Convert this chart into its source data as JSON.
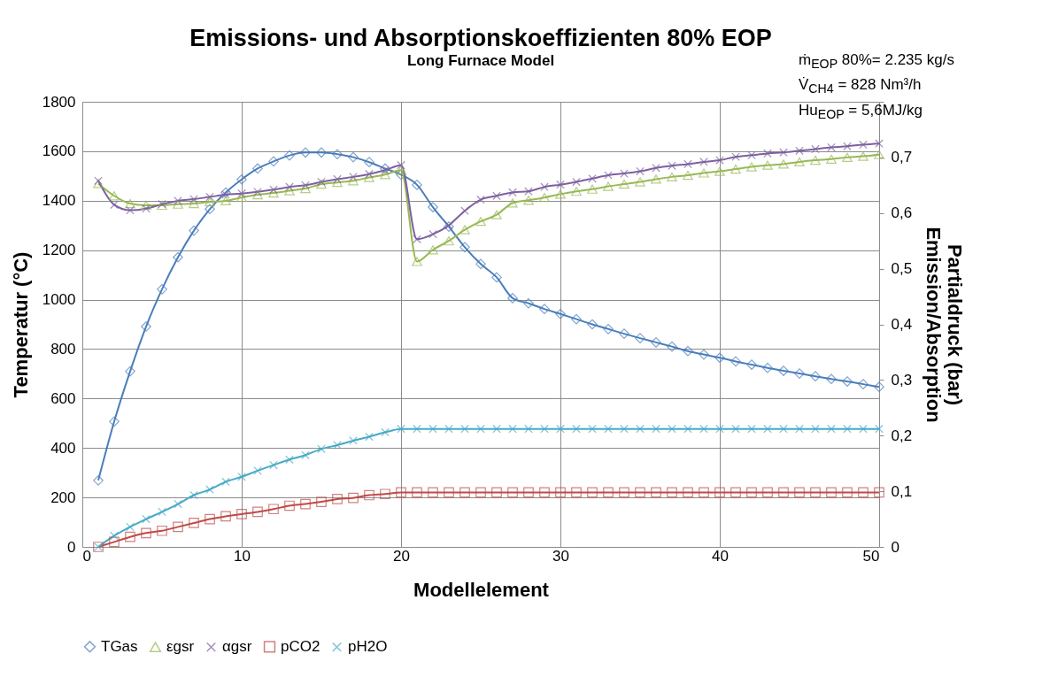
{
  "chart_data": {
    "type": "line",
    "title": "Emissions- und Absorptionskoeffizienten 80% EOP",
    "subtitle": "Long Furnace Model",
    "xlabel": "Modellelement",
    "ylabel": "Temperatur (°C)",
    "y2label": "Partialdruck (bar)\nEmission/Absorption",
    "x": [
      1,
      2,
      3,
      4,
      5,
      6,
      7,
      8,
      9,
      10,
      11,
      12,
      13,
      14,
      15,
      16,
      17,
      18,
      19,
      20,
      21,
      22,
      23,
      24,
      25,
      26,
      27,
      28,
      29,
      30,
      31,
      32,
      33,
      34,
      35,
      36,
      37,
      38,
      39,
      40,
      41,
      42,
      43,
      44,
      45,
      46,
      47,
      48,
      49,
      50
    ],
    "series": [
      {
        "name": "TGas",
        "color": "#4a7ebb",
        "marker": "diamond",
        "values": [
          269,
          507,
          710,
          891,
          1042,
          1171,
          1279,
          1366,
          1433,
          1486,
          1530,
          1559,
          1583,
          1595,
          1595,
          1588,
          1576,
          1556,
          1530,
          1505,
          1464,
          1374,
          1295,
          1212,
          1144,
          1090,
          1006,
          985,
          962,
          942,
          921,
          900,
          881,
          862,
          844,
          827,
          810,
          792,
          778,
          765,
          750,
          737,
          724,
          712,
          701,
          690,
          679,
          669,
          658,
          647
        ]
      },
      {
        "name": "εgsr",
        "color": "#98b954",
        "marker": "triangle",
        "axis": "y2",
        "values": [
          0.653,
          0.631,
          0.617,
          0.614,
          0.614,
          0.616,
          0.617,
          0.62,
          0.622,
          0.628,
          0.633,
          0.636,
          0.64,
          0.644,
          0.652,
          0.655,
          0.658,
          0.664,
          0.669,
          0.677,
          0.513,
          0.534,
          0.55,
          0.57,
          0.585,
          0.597,
          0.618,
          0.623,
          0.628,
          0.634,
          0.639,
          0.643,
          0.648,
          0.652,
          0.656,
          0.661,
          0.665,
          0.668,
          0.672,
          0.675,
          0.679,
          0.683,
          0.686,
          0.688,
          0.692,
          0.695,
          0.697,
          0.7,
          0.702,
          0.705
        ]
      },
      {
        "name": "αgsr",
        "color": "#7d60a0",
        "marker": "cross",
        "axis": "y2",
        "values": [
          0.658,
          0.615,
          0.605,
          0.608,
          0.616,
          0.622,
          0.625,
          0.629,
          0.633,
          0.635,
          0.638,
          0.642,
          0.647,
          0.65,
          0.656,
          0.661,
          0.665,
          0.67,
          0.677,
          0.686,
          0.553,
          0.562,
          0.578,
          0.604,
          0.624,
          0.631,
          0.637,
          0.639,
          0.647,
          0.651,
          0.656,
          0.662,
          0.668,
          0.671,
          0.675,
          0.681,
          0.685,
          0.688,
          0.692,
          0.695,
          0.701,
          0.704,
          0.707,
          0.709,
          0.712,
          0.715,
          0.718,
          0.72,
          0.723,
          0.725
        ]
      },
      {
        "name": "pCO2",
        "color": "#be4b48",
        "marker": "square",
        "axis": "y2",
        "values": [
          0,
          0.009,
          0.018,
          0.025,
          0.029,
          0.036,
          0.043,
          0.05,
          0.055,
          0.059,
          0.063,
          0.068,
          0.074,
          0.077,
          0.081,
          0.086,
          0.088,
          0.093,
          0.095,
          0.098,
          0.098,
          0.098,
          0.098,
          0.098,
          0.098,
          0.098,
          0.098,
          0.098,
          0.098,
          0.098,
          0.098,
          0.098,
          0.098,
          0.098,
          0.098,
          0.098,
          0.098,
          0.098,
          0.098,
          0.098,
          0.098,
          0.098,
          0.098,
          0.098,
          0.098,
          0.098,
          0.098,
          0.098,
          0.098,
          0.098
        ]
      },
      {
        "name": "pH2O",
        "color": "#46aac5",
        "marker": "cross",
        "axis": "y2",
        "values": [
          0,
          0.02,
          0.036,
          0.05,
          0.063,
          0.077,
          0.093,
          0.103,
          0.117,
          0.126,
          0.137,
          0.147,
          0.157,
          0.165,
          0.176,
          0.183,
          0.191,
          0.198,
          0.206,
          0.212,
          0.212,
          0.212,
          0.212,
          0.212,
          0.212,
          0.212,
          0.212,
          0.212,
          0.212,
          0.212,
          0.212,
          0.212,
          0.212,
          0.212,
          0.212,
          0.212,
          0.212,
          0.212,
          0.212,
          0.212,
          0.212,
          0.212,
          0.212,
          0.212,
          0.212,
          0.212,
          0.212,
          0.212,
          0.212,
          0.212
        ]
      }
    ],
    "xlim": [
      0,
      50
    ],
    "xticks": [
      0,
      10,
      20,
      30,
      40,
      50
    ],
    "ylim": [
      0,
      1800
    ],
    "yticks": [
      0,
      200,
      400,
      600,
      800,
      1000,
      1200,
      1400,
      1600,
      1800
    ],
    "y2lim": [
      0,
      0.8
    ],
    "y2ticks": [
      0,
      {
        "value": 0.1,
        "label": "0,1"
      },
      {
        "value": 0.2,
        "label": "0,2"
      },
      {
        "value": 0.3,
        "label": "0,3"
      },
      {
        "value": 0.4,
        "label": "0,4"
      },
      {
        "value": 0.5,
        "label": "0,5"
      },
      {
        "value": 0.6,
        "label": "0,6"
      },
      {
        "value": 0.7,
        "label": "0,7"
      },
      {
        "value": 0.8,
        "label": null
      }
    ],
    "grid": true,
    "legend": "bottom",
    "line_style": "solid",
    "annotations": [
      "ṁ$_{EOP}$ 80%= 2.235 kg/s",
      "V̇$_{CH4}$ =  828 Nm³/h",
      "Hu$_{EOP}$ = 5,6MJ/kg"
    ]
  }
}
